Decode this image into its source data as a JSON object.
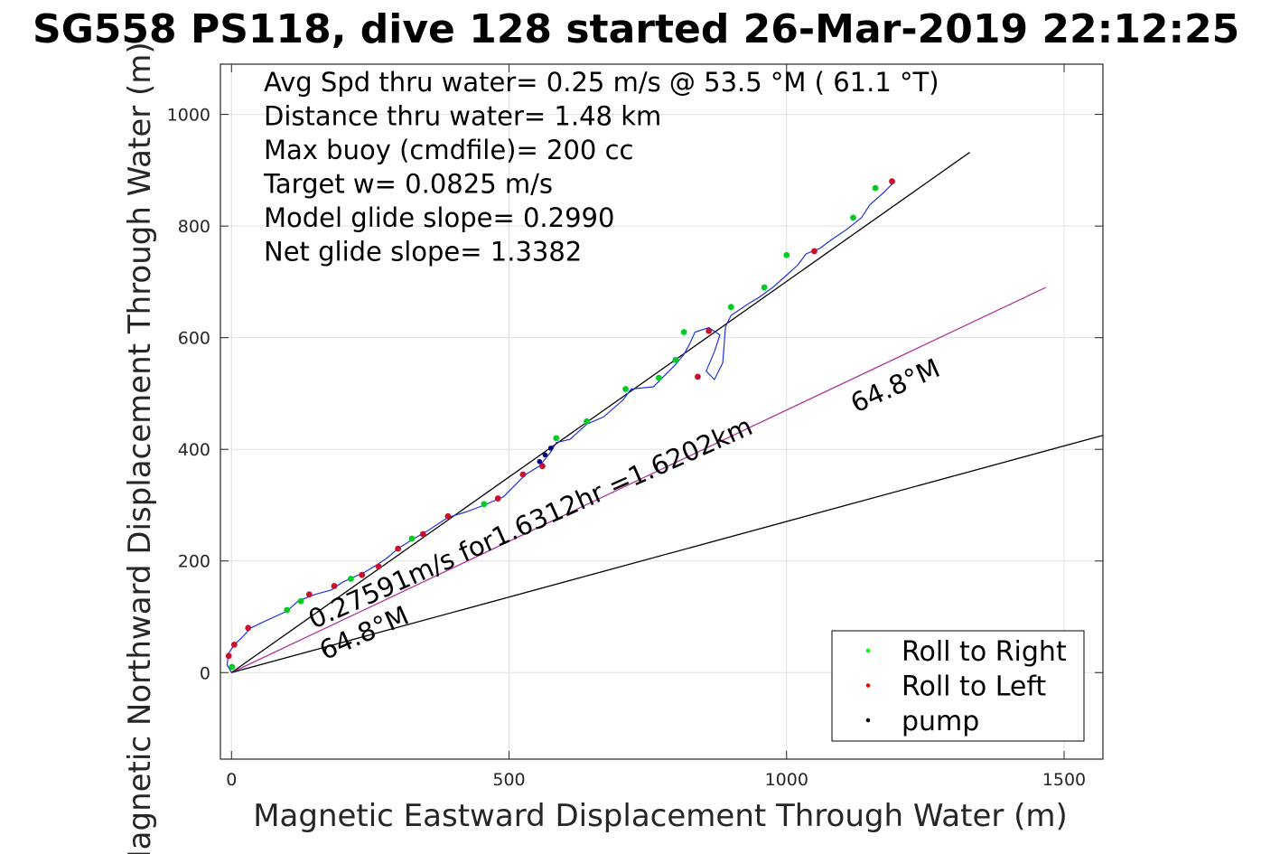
{
  "chart_data": {
    "type": "scatter",
    "title": "SG558 PS118, dive 128 started 26-Mar-2019 22:12:25",
    "xlabel": "Magnetic Eastward Displacement Through Water (m)",
    "ylabel": "Magnetic Northward Displacement Through Water (m)",
    "xlim": [
      -20,
      1570
    ],
    "ylim": [
      -155,
      1090
    ],
    "xticks": [
      0,
      500,
      1000,
      1500
    ],
    "yticks": [
      0,
      200,
      400,
      600,
      800,
      1000
    ],
    "grid": true,
    "legend_position": "bottom-right",
    "stats_lines": [
      "Avg Spd thru water=  0.25 m/s @  53.5 °M ( 61.1 °T)",
      "Distance thru water=  1.48 km",
      "Max buoy (cmdfile)= 200 cc",
      "Target w= 0.0825 m/s",
      "Model glide slope= 0.2990",
      "Net glide slope= 1.3382"
    ],
    "annotations": [
      {
        "text": "0.27591m/s for1.6312hr =1.6202km",
        "x": 148,
        "y": 78,
        "angle": 24
      },
      {
        "text": "64.8°M",
        "x": 168,
        "y": 22,
        "angle": 24
      },
      {
        "text": "64.8°M",
        "x": 1125,
        "y": 465,
        "angle": 24
      }
    ],
    "reference_lines": [
      {
        "name": "track heading",
        "color": "#000000",
        "points": [
          [
            0,
            0
          ],
          [
            1330,
            932
          ]
        ]
      },
      {
        "name": "64.8°M",
        "color": "#b0359e",
        "points": [
          [
            0,
            0
          ],
          [
            1467,
            690
          ]
        ]
      },
      {
        "name": "model line",
        "color": "#000000",
        "points": [
          [
            0,
            0
          ],
          [
            1570,
            425
          ]
        ]
      }
    ],
    "series": [
      {
        "name": "track",
        "color": "#2233dd",
        "points": [
          [
            0,
            0
          ],
          [
            -8,
            14
          ],
          [
            -5,
            35
          ],
          [
            5,
            50
          ],
          [
            18,
            62
          ],
          [
            35,
            80
          ],
          [
            60,
            92
          ],
          [
            100,
            110
          ],
          [
            120,
            128
          ],
          [
            150,
            140
          ],
          [
            180,
            148
          ],
          [
            200,
            162
          ],
          [
            240,
            180
          ],
          [
            260,
            192
          ],
          [
            280,
            205
          ],
          [
            300,
            222
          ],
          [
            325,
            238
          ],
          [
            355,
            255
          ],
          [
            390,
            278
          ],
          [
            420,
            287
          ],
          [
            455,
            300
          ],
          [
            490,
            315
          ],
          [
            510,
            335
          ],
          [
            530,
            355
          ],
          [
            555,
            370
          ],
          [
            575,
            395
          ],
          [
            585,
            412
          ],
          [
            610,
            418
          ],
          [
            640,
            445
          ],
          [
            670,
            458
          ],
          [
            705,
            488
          ],
          [
            720,
            508
          ],
          [
            760,
            512
          ],
          [
            780,
            532
          ],
          [
            800,
            552
          ],
          [
            815,
            570
          ],
          [
            825,
            588
          ],
          [
            835,
            610
          ],
          [
            860,
            618
          ],
          [
            880,
            605
          ],
          [
            870,
            575
          ],
          [
            855,
            540
          ],
          [
            870,
            525
          ],
          [
            885,
            555
          ],
          [
            890,
            620
          ],
          [
            900,
            640
          ],
          [
            930,
            660
          ],
          [
            950,
            672
          ],
          [
            975,
            690
          ],
          [
            1000,
            712
          ],
          [
            1020,
            730
          ],
          [
            1035,
            750
          ],
          [
            1060,
            760
          ],
          [
            1080,
            775
          ],
          [
            1110,
            795
          ],
          [
            1135,
            815
          ],
          [
            1150,
            838
          ],
          [
            1175,
            860
          ],
          [
            1195,
            880
          ]
        ]
      }
    ],
    "legend": [
      {
        "label": "Roll to Right",
        "color": "#00ff00"
      },
      {
        "label": "Roll to Left",
        "color": "#ff0000"
      },
      {
        "label": "pump",
        "color": "#000000"
      }
    ],
    "roll_right_points": [
      [
        1,
        10
      ],
      [
        100,
        112
      ],
      [
        125,
        128
      ],
      [
        215,
        168
      ],
      [
        325,
        240
      ],
      [
        455,
        302
      ],
      [
        585,
        420
      ],
      [
        640,
        450
      ],
      [
        710,
        508
      ],
      [
        770,
        528
      ],
      [
        800,
        560
      ],
      [
        815,
        610
      ],
      [
        900,
        655
      ],
      [
        960,
        690
      ],
      [
        1000,
        748
      ],
      [
        1120,
        815
      ],
      [
        1160,
        868
      ]
    ],
    "roll_left_points": [
      [
        -5,
        30
      ],
      [
        5,
        50
      ],
      [
        30,
        80
      ],
      [
        140,
        140
      ],
      [
        185,
        155
      ],
      [
        235,
        175
      ],
      [
        265,
        190
      ],
      [
        300,
        222
      ],
      [
        345,
        248
      ],
      [
        390,
        280
      ],
      [
        480,
        312
      ],
      [
        525,
        355
      ],
      [
        560,
        370
      ],
      [
        840,
        530
      ],
      [
        860,
        612
      ],
      [
        1050,
        755
      ],
      [
        1190,
        880
      ]
    ],
    "pump_points": [
      [
        555,
        378
      ],
      [
        565,
        390
      ],
      [
        575,
        402
      ]
    ]
  }
}
